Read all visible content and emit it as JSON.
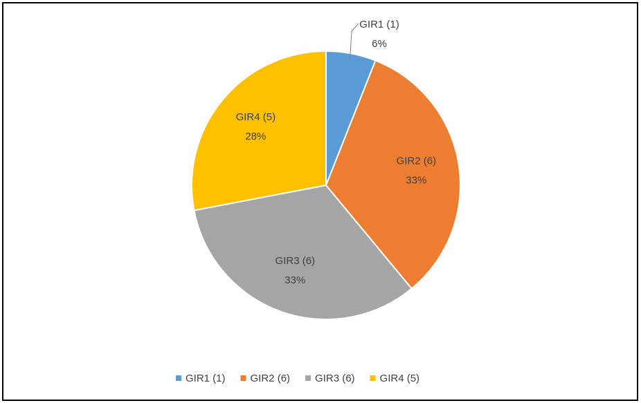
{
  "chart_data": {
    "type": "pie",
    "categories": [
      "GIR1 (1)",
      "GIR2 (6)",
      "GIR3 (6)",
      "GIR4 (5)"
    ],
    "values": [
      6,
      33,
      33,
      28
    ],
    "value_labels": [
      "6%",
      "33%",
      "33%",
      "28%"
    ],
    "colors": [
      "#5b9bd5",
      "#ed7d31",
      "#a5a5a5",
      "#ffc000"
    ],
    "legend": "bottom"
  }
}
